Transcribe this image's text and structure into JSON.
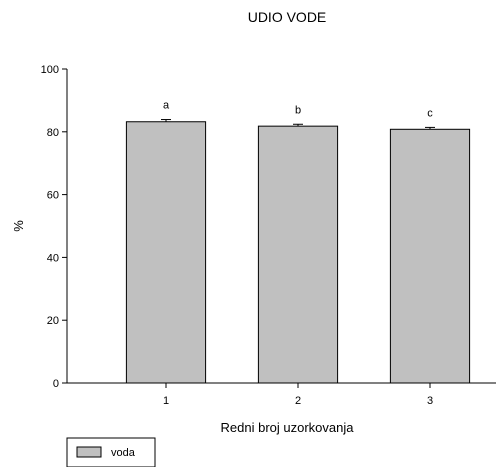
{
  "chart_data": {
    "type": "bar",
    "title": "UDIO VODE",
    "xlabel": "Redni broj uzorkovanja",
    "ylabel": "%",
    "categories": [
      "1",
      "2",
      "3"
    ],
    "series": [
      {
        "name": "voda",
        "values": [
          83.2,
          81.8,
          80.8
        ],
        "errors": [
          0.7,
          0.6,
          0.6
        ],
        "labels": [
          "a",
          "b",
          "c"
        ]
      }
    ],
    "ylim": [
      0,
      100
    ],
    "yticks": [
      "0",
      "20",
      "40",
      "60",
      "80",
      "100"
    ],
    "grid": false,
    "legend_position": "bottom-left",
    "colors": {
      "bar_fill": "#c0c0c0",
      "bar_stroke": "#000000",
      "axis": "#000000"
    }
  }
}
